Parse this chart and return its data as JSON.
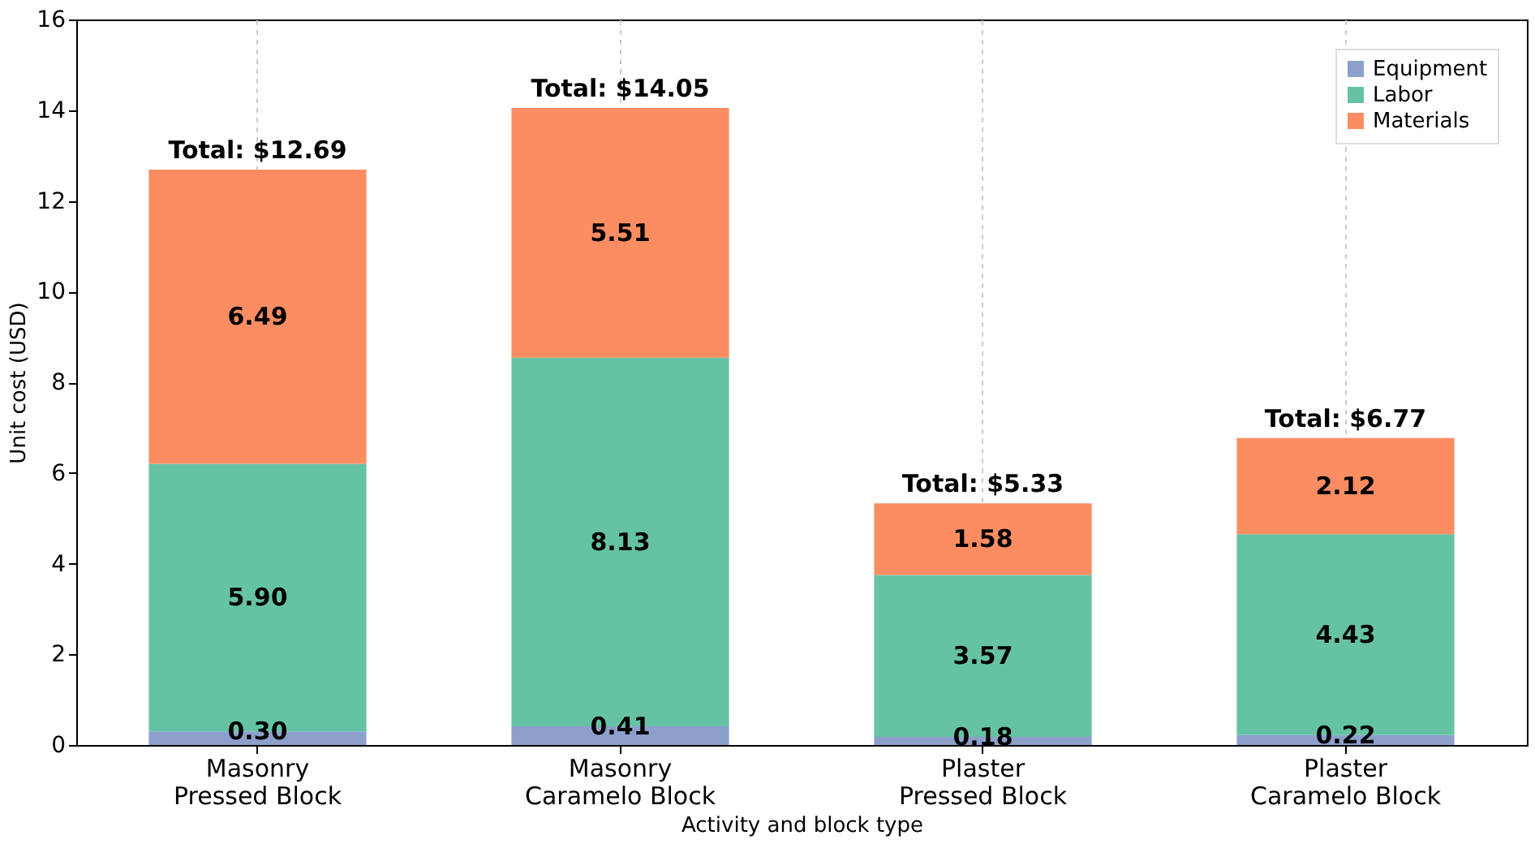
{
  "chart_data": {
    "type": "bar",
    "stacked": true,
    "xlabel": "Activity and block type",
    "ylabel": "Unit cost (USD)",
    "categories": [
      "Masonry\nPressed Block",
      "Masonry\nCaramelo Block",
      "Plaster\nPressed Block",
      "Plaster\nCaramelo Block"
    ],
    "series": [
      {
        "name": "Equipment",
        "color": "#8da0cb",
        "values": [
          0.3,
          0.41,
          0.18,
          0.22
        ],
        "value_labels": [
          "0.30",
          "0.41",
          "0.18",
          "0.22"
        ]
      },
      {
        "name": "Labor",
        "color": "#66c2a5",
        "values": [
          5.9,
          8.13,
          3.57,
          4.43
        ],
        "value_labels": [
          "5.90",
          "8.13",
          "3.57",
          "4.43"
        ]
      },
      {
        "name": "Materials",
        "color": "#fc8d62",
        "values": [
          6.49,
          5.51,
          1.58,
          2.12
        ],
        "value_labels": [
          "6.49",
          "5.51",
          "1.58",
          "2.12"
        ]
      }
    ],
    "totals": [
      "Total: $12.69",
      "Total: $14.05",
      "Total: $5.33",
      "Total: $6.77"
    ],
    "ylim": [
      0,
      16
    ],
    "yticks": [
      0,
      2,
      4,
      6,
      8,
      10,
      12,
      14,
      16
    ],
    "grid": "x",
    "legend": "top right"
  }
}
